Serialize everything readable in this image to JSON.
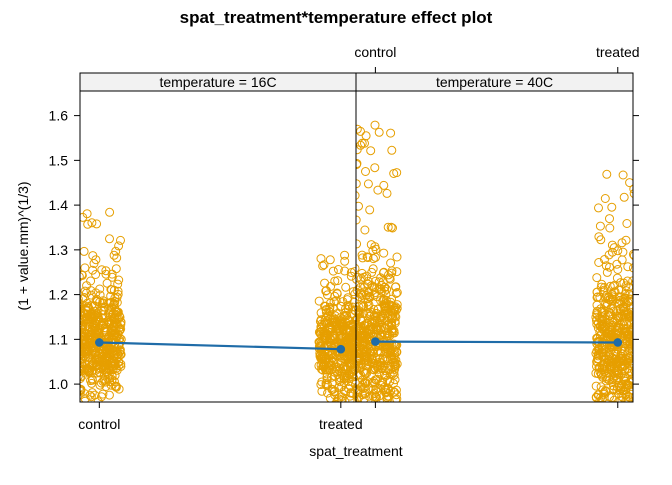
{
  "chart_data": {
    "type": "scatter",
    "title": "spat_treatment*temperature effect plot",
    "xlabel": "spat_treatment",
    "ylabel": "(1 + value.mm)^(1/3)",
    "ylim": [
      0.96,
      1.655
    ],
    "yticks": [
      "1.0",
      "1.1",
      "1.2",
      "1.3",
      "1.4",
      "1.5",
      "1.6"
    ],
    "categories": [
      "control",
      "treated"
    ],
    "panels": [
      {
        "strip": "temperature = 16C",
        "effects": [
          1.093,
          1.078
        ],
        "ranges": {
          "control": {
            "min": 0.96,
            "max": 1.39
          },
          "treated": {
            "min": 0.96,
            "max": 1.3
          }
        }
      },
      {
        "strip": "temperature = 40C",
        "effects": [
          1.095,
          1.093
        ],
        "ranges": {
          "control": {
            "min": 0.96,
            "max": 1.58
          },
          "treated": {
            "min": 0.96,
            "max": 1.49
          }
        }
      }
    ],
    "grid": false,
    "legend": "none",
    "point_color": "#E69F00",
    "effect_color": "#1F6CA8"
  }
}
